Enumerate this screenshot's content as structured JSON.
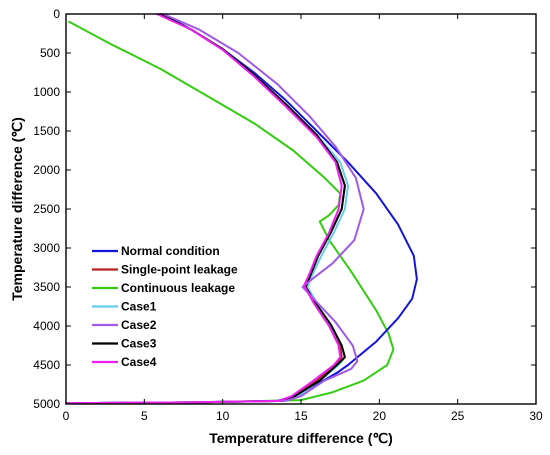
{
  "chart_data": {
    "type": "line",
    "title": "",
    "xlabel": "Temperature difference (℃)",
    "ylabel": "Temperature difference (℃)",
    "xlim": [
      0,
      30
    ],
    "ylim": [
      5000,
      0
    ],
    "y_axis_reversed": true,
    "x_ticks": [
      0,
      5,
      10,
      15,
      20,
      25,
      30
    ],
    "y_ticks": [
      0,
      500,
      1000,
      1500,
      2000,
      2500,
      3000,
      3500,
      4000,
      4500,
      5000
    ],
    "grid": false,
    "legend_position": "lower-left",
    "series": [
      {
        "name": "Normal condition",
        "color": "#1414d8",
        "points": [
          [
            6.2,
            0
          ],
          [
            8,
            200
          ],
          [
            10,
            450
          ],
          [
            12,
            750
          ],
          [
            14,
            1100
          ],
          [
            16,
            1500
          ],
          [
            18,
            1900
          ],
          [
            19.8,
            2300
          ],
          [
            21.2,
            2700
          ],
          [
            22.2,
            3100
          ],
          [
            22.4,
            3400
          ],
          [
            22.1,
            3650
          ],
          [
            21.2,
            3900
          ],
          [
            19.8,
            4200
          ],
          [
            18,
            4500
          ],
          [
            17.3,
            4600
          ],
          [
            16,
            4750
          ],
          [
            14.5,
            4900
          ],
          [
            13.5,
            4960
          ],
          [
            8,
            4980
          ],
          [
            0,
            4990
          ]
        ]
      },
      {
        "name": "Single-point leakage",
        "color": "#b22222",
        "points": [
          [
            6.0,
            0
          ],
          [
            8,
            200
          ],
          [
            10,
            450
          ],
          [
            12,
            780
          ],
          [
            14,
            1150
          ],
          [
            16,
            1550
          ],
          [
            17.3,
            1900
          ],
          [
            17.8,
            2200
          ],
          [
            17.6,
            2500
          ],
          [
            16.9,
            2800
          ],
          [
            16.1,
            3100
          ],
          [
            15.6,
            3350
          ],
          [
            15.3,
            3500
          ],
          [
            15.8,
            3700
          ],
          [
            16.8,
            4000
          ],
          [
            17.5,
            4250
          ],
          [
            17.6,
            4400
          ],
          [
            17.2,
            4500
          ],
          [
            16,
            4700
          ],
          [
            14.6,
            4900
          ],
          [
            13.8,
            4960
          ],
          [
            8,
            4980
          ],
          [
            0,
            4990
          ]
        ]
      },
      {
        "name": "Continuous leakage",
        "color": "#33cc11",
        "points": [
          [
            0.2,
            100
          ],
          [
            3,
            400
          ],
          [
            6,
            700
          ],
          [
            9,
            1050
          ],
          [
            12,
            1400
          ],
          [
            14.5,
            1750
          ],
          [
            16.5,
            2100
          ],
          [
            17.5,
            2300
          ],
          [
            17.4,
            2450
          ],
          [
            16.8,
            2580
          ],
          [
            16.2,
            2660
          ],
          [
            16.8,
            2900
          ],
          [
            18.2,
            3300
          ],
          [
            19.8,
            3800
          ],
          [
            20.6,
            4100
          ],
          [
            20.9,
            4300
          ],
          [
            20.5,
            4500
          ],
          [
            19,
            4700
          ],
          [
            17,
            4850
          ],
          [
            15,
            4950
          ],
          [
            8,
            4980
          ],
          [
            0,
            4990
          ]
        ]
      },
      {
        "name": "Case1",
        "color": "#66ccee",
        "points": [
          [
            6.0,
            0
          ],
          [
            8,
            200
          ],
          [
            10,
            450
          ],
          [
            12,
            780
          ],
          [
            14,
            1150
          ],
          [
            16,
            1550
          ],
          [
            17.5,
            1900
          ],
          [
            18,
            2200
          ],
          [
            17.8,
            2500
          ],
          [
            17.1,
            2800
          ],
          [
            16.3,
            3100
          ],
          [
            15.7,
            3350
          ],
          [
            15.4,
            3500
          ],
          [
            16,
            3700
          ],
          [
            16.9,
            4000
          ],
          [
            17.6,
            4250
          ],
          [
            17.8,
            4400
          ],
          [
            17.4,
            4500
          ],
          [
            16.2,
            4700
          ],
          [
            14.8,
            4900
          ],
          [
            13.9,
            4960
          ],
          [
            8,
            4980
          ],
          [
            0,
            4990
          ]
        ]
      },
      {
        "name": "Case2",
        "color": "#a05ae6",
        "points": [
          [
            6.2,
            0
          ],
          [
            8.5,
            200
          ],
          [
            11,
            500
          ],
          [
            13.5,
            900
          ],
          [
            15.5,
            1300
          ],
          [
            17.2,
            1700
          ],
          [
            18.5,
            2100
          ],
          [
            19,
            2500
          ],
          [
            18.4,
            2900
          ],
          [
            17,
            3200
          ],
          [
            15.7,
            3400
          ],
          [
            15.1,
            3500
          ],
          [
            15.8,
            3650
          ],
          [
            17.2,
            3950
          ],
          [
            18.3,
            4250
          ],
          [
            18.6,
            4450
          ],
          [
            18.2,
            4550
          ],
          [
            16.5,
            4700
          ],
          [
            15,
            4900
          ],
          [
            14,
            4960
          ],
          [
            8,
            4980
          ],
          [
            0,
            4990
          ]
        ]
      },
      {
        "name": "Case3",
        "color": "#000000",
        "points": [
          [
            6.0,
            0
          ],
          [
            8,
            200
          ],
          [
            10,
            450
          ],
          [
            12,
            780
          ],
          [
            14,
            1150
          ],
          [
            16,
            1550
          ],
          [
            17.3,
            1900
          ],
          [
            17.8,
            2200
          ],
          [
            17.6,
            2500
          ],
          [
            16.9,
            2800
          ],
          [
            16.1,
            3100
          ],
          [
            15.6,
            3350
          ],
          [
            15.3,
            3500
          ],
          [
            15.9,
            3700
          ],
          [
            16.9,
            3980
          ],
          [
            17.6,
            4250
          ],
          [
            17.8,
            4400
          ],
          [
            17.5,
            4460
          ],
          [
            16.2,
            4700
          ],
          [
            14.6,
            4900
          ],
          [
            13.8,
            4960
          ],
          [
            8,
            4980
          ],
          [
            0,
            4990
          ]
        ]
      },
      {
        "name": "Case4",
        "color": "#ee22ee",
        "points": [
          [
            5.8,
            0
          ],
          [
            8,
            200
          ],
          [
            10,
            460
          ],
          [
            12,
            800
          ],
          [
            14,
            1180
          ],
          [
            16,
            1580
          ],
          [
            17.2,
            1900
          ],
          [
            17.6,
            2200
          ],
          [
            17.4,
            2500
          ],
          [
            16.8,
            2800
          ],
          [
            16,
            3100
          ],
          [
            15.5,
            3350
          ],
          [
            15.2,
            3480
          ],
          [
            15.8,
            3700
          ],
          [
            16.8,
            4000
          ],
          [
            17.4,
            4250
          ],
          [
            17.5,
            4400
          ],
          [
            17.1,
            4500
          ],
          [
            15.8,
            4700
          ],
          [
            14.4,
            4900
          ],
          [
            13.6,
            4960
          ],
          [
            8,
            4980
          ],
          [
            0,
            4990
          ]
        ]
      }
    ]
  }
}
